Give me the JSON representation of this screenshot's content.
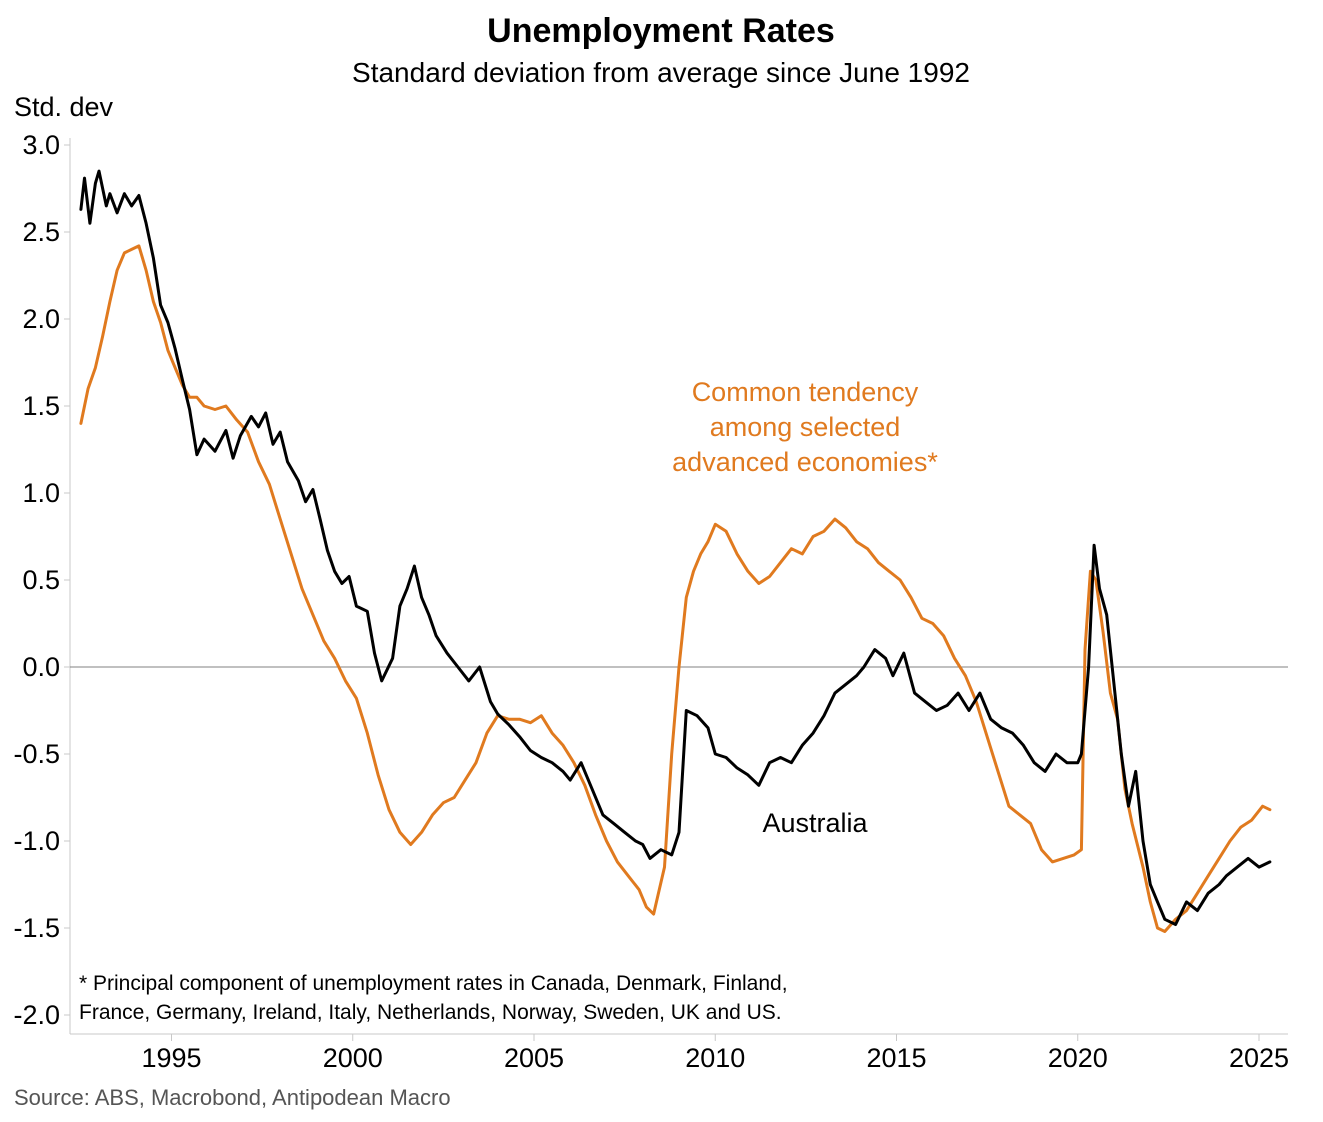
{
  "chart_data": {
    "type": "line",
    "title": "Unemployment Rates",
    "subtitle": "Standard deviation from average since June 1992",
    "ylabel": "Std. dev",
    "xlabel": "",
    "ylim": [
      -2.0,
      3.0
    ],
    "xlim": [
      1992.2,
      2025.8
    ],
    "yticks": [
      {
        "value": 3.0,
        "label": "3.0"
      },
      {
        "value": 2.5,
        "label": "2.5"
      },
      {
        "value": 2.0,
        "label": "2.0"
      },
      {
        "value": 1.5,
        "label": "1.5"
      },
      {
        "value": 1.0,
        "label": "1.0"
      },
      {
        "value": 0.5,
        "label": "0.5"
      },
      {
        "value": 0.0,
        "label": "0.0"
      },
      {
        "value": -0.5,
        "label": "-0.5"
      },
      {
        "value": -1.0,
        "label": "-1.0"
      },
      {
        "value": -1.5,
        "label": "-1.5"
      },
      {
        "value": -2.0,
        "label": "-2.0"
      }
    ],
    "xticks": [
      {
        "value": 1995,
        "label": "1995"
      },
      {
        "value": 2000,
        "label": "2000"
      },
      {
        "value": 2005,
        "label": "2005"
      },
      {
        "value": 2010,
        "label": "2010"
      },
      {
        "value": 2015,
        "label": "2015"
      },
      {
        "value": 2020,
        "label": "2020"
      },
      {
        "value": 2025,
        "label": "2025"
      }
    ],
    "zero_line": true,
    "grid": false,
    "series": [
      {
        "name": "Australia",
        "color": "#000000",
        "x": [
          1992.5,
          1992.6,
          1992.75,
          1992.9,
          1993.0,
          1993.2,
          1993.3,
          1993.5,
          1993.7,
          1993.9,
          1994.1,
          1994.3,
          1994.5,
          1994.7,
          1994.9,
          1995.1,
          1995.3,
          1995.5,
          1995.7,
          1995.9,
          1996.2,
          1996.5,
          1996.7,
          1996.9,
          1997.2,
          1997.4,
          1997.6,
          1997.8,
          1998.0,
          1998.2,
          1998.5,
          1998.7,
          1998.9,
          1999.1,
          1999.3,
          1999.5,
          1999.7,
          1999.9,
          2000.1,
          2000.4,
          2000.6,
          2000.8,
          2001.1,
          2001.3,
          2001.5,
          2001.7,
          2001.9,
          2002.1,
          2002.3,
          2002.6,
          2002.9,
          2003.2,
          2003.5,
          2003.8,
          2004.0,
          2004.3,
          2004.6,
          2004.9,
          2005.2,
          2005.5,
          2005.8,
          2006.0,
          2006.3,
          2006.6,
          2006.9,
          2007.2,
          2007.5,
          2007.8,
          2008.0,
          2008.2,
          2008.5,
          2008.8,
          2009.0,
          2009.2,
          2009.5,
          2009.8,
          2010.0,
          2010.3,
          2010.6,
          2010.9,
          2011.2,
          2011.5,
          2011.8,
          2012.1,
          2012.4,
          2012.7,
          2013.0,
          2013.3,
          2013.6,
          2013.9,
          2014.1,
          2014.4,
          2014.7,
          2014.9,
          2015.2,
          2015.5,
          2015.8,
          2016.1,
          2016.4,
          2016.7,
          2017.0,
          2017.3,
          2017.6,
          2017.9,
          2018.2,
          2018.5,
          2018.8,
          2019.1,
          2019.4,
          2019.7,
          2020.0,
          2020.1,
          2020.3,
          2020.45,
          2020.6,
          2020.8,
          2021.0,
          2021.2,
          2021.4,
          2021.6,
          2021.8,
          2022.0,
          2022.2,
          2022.4,
          2022.7,
          2023.0,
          2023.3,
          2023.6,
          2023.9,
          2024.1,
          2024.4,
          2024.7,
          2025.0,
          2025.3
        ],
        "values": [
          2.63,
          2.81,
          2.55,
          2.78,
          2.85,
          2.65,
          2.72,
          2.61,
          2.72,
          2.65,
          2.71,
          2.55,
          2.35,
          2.08,
          1.98,
          1.83,
          1.65,
          1.48,
          1.22,
          1.31,
          1.24,
          1.36,
          1.2,
          1.33,
          1.44,
          1.38,
          1.46,
          1.28,
          1.35,
          1.18,
          1.07,
          0.95,
          1.02,
          0.85,
          0.67,
          0.55,
          0.48,
          0.52,
          0.35,
          0.32,
          0.08,
          -0.08,
          0.05,
          0.35,
          0.45,
          0.58,
          0.4,
          0.3,
          0.18,
          0.08,
          0.0,
          -0.08,
          0.0,
          -0.2,
          -0.27,
          -0.33,
          -0.4,
          -0.48,
          -0.52,
          -0.55,
          -0.6,
          -0.65,
          -0.55,
          -0.7,
          -0.85,
          -0.9,
          -0.95,
          -1.0,
          -1.02,
          -1.1,
          -1.05,
          -1.08,
          -0.95,
          -0.25,
          -0.28,
          -0.35,
          -0.5,
          -0.52,
          -0.58,
          -0.62,
          -0.68,
          -0.55,
          -0.52,
          -0.55,
          -0.45,
          -0.38,
          -0.28,
          -0.15,
          -0.1,
          -0.05,
          0.0,
          0.1,
          0.05,
          -0.05,
          0.08,
          -0.15,
          -0.2,
          -0.25,
          -0.22,
          -0.15,
          -0.25,
          -0.15,
          -0.3,
          -0.35,
          -0.38,
          -0.45,
          -0.55,
          -0.6,
          -0.5,
          -0.55,
          -0.55,
          -0.5,
          0.0,
          0.7,
          0.45,
          0.3,
          -0.1,
          -0.5,
          -0.8,
          -0.6,
          -1.0,
          -1.25,
          -1.35,
          -1.45,
          -1.48,
          -1.35,
          -1.4,
          -1.3,
          -1.25,
          -1.2,
          -1.15,
          -1.1,
          -1.15,
          -1.12
        ]
      },
      {
        "name": "Common tendency among selected advanced economies*",
        "color": "#E07A1F",
        "x": [
          1992.5,
          1992.7,
          1992.9,
          1993.1,
          1993.3,
          1993.5,
          1993.7,
          1993.9,
          1994.1,
          1994.3,
          1994.5,
          1994.7,
          1994.9,
          1995.1,
          1995.3,
          1995.5,
          1995.7,
          1995.9,
          1996.2,
          1996.5,
          1996.8,
          1997.1,
          1997.4,
          1997.7,
          1998.0,
          1998.3,
          1998.6,
          1998.9,
          1999.2,
          1999.5,
          1999.8,
          2000.1,
          2000.4,
          2000.7,
          2001.0,
          2001.3,
          2001.6,
          2001.9,
          2002.2,
          2002.5,
          2002.8,
          2003.1,
          2003.4,
          2003.7,
          2004.0,
          2004.3,
          2004.6,
          2004.9,
          2005.2,
          2005.5,
          2005.8,
          2006.1,
          2006.4,
          2006.7,
          2007.0,
          2007.3,
          2007.6,
          2007.9,
          2008.1,
          2008.3,
          2008.6,
          2008.8,
          2009.0,
          2009.2,
          2009.4,
          2009.6,
          2009.8,
          2010.0,
          2010.3,
          2010.6,
          2010.9,
          2011.2,
          2011.5,
          2011.8,
          2012.1,
          2012.4,
          2012.7,
          2013.0,
          2013.3,
          2013.6,
          2013.9,
          2014.2,
          2014.5,
          2014.8,
          2015.1,
          2015.4,
          2015.7,
          2016.0,
          2016.3,
          2016.6,
          2016.9,
          2017.2,
          2017.5,
          2017.8,
          2018.1,
          2018.4,
          2018.7,
          2019.0,
          2019.3,
          2019.6,
          2019.9,
          2020.1,
          2020.2,
          2020.35,
          2020.5,
          2020.7,
          2020.9,
          2021.1,
          2021.3,
          2021.5,
          2021.8,
          2022.0,
          2022.2,
          2022.4,
          2022.7,
          2023.0,
          2023.3,
          2023.6,
          2023.9,
          2024.2,
          2024.5,
          2024.8,
          2025.1,
          2025.3
        ],
        "values": [
          1.4,
          1.6,
          1.72,
          1.9,
          2.1,
          2.28,
          2.38,
          2.4,
          2.42,
          2.28,
          2.1,
          1.98,
          1.82,
          1.72,
          1.62,
          1.55,
          1.55,
          1.5,
          1.48,
          1.5,
          1.42,
          1.35,
          1.18,
          1.05,
          0.85,
          0.65,
          0.45,
          0.3,
          0.15,
          0.05,
          -0.08,
          -0.18,
          -0.38,
          -0.62,
          -0.82,
          -0.95,
          -1.02,
          -0.95,
          -0.85,
          -0.78,
          -0.75,
          -0.65,
          -0.55,
          -0.38,
          -0.28,
          -0.3,
          -0.3,
          -0.32,
          -0.28,
          -0.38,
          -0.45,
          -0.55,
          -0.68,
          -0.85,
          -1.0,
          -1.12,
          -1.2,
          -1.28,
          -1.38,
          -1.42,
          -1.15,
          -0.5,
          0.0,
          0.4,
          0.55,
          0.65,
          0.72,
          0.82,
          0.78,
          0.65,
          0.55,
          0.48,
          0.52,
          0.6,
          0.68,
          0.65,
          0.75,
          0.78,
          0.85,
          0.8,
          0.72,
          0.68,
          0.6,
          0.55,
          0.5,
          0.4,
          0.28,
          0.25,
          0.18,
          0.05,
          -0.05,
          -0.2,
          -0.4,
          -0.6,
          -0.8,
          -0.85,
          -0.9,
          -1.05,
          -1.12,
          -1.1,
          -1.08,
          -1.05,
          0.1,
          0.55,
          0.5,
          0.2,
          -0.15,
          -0.3,
          -0.7,
          -0.9,
          -1.15,
          -1.35,
          -1.5,
          -1.52,
          -1.45,
          -1.4,
          -1.3,
          -1.2,
          -1.1,
          -1.0,
          -0.92,
          -0.88,
          -0.8,
          -0.82
        ]
      }
    ],
    "annotations": {
      "orange_lines": [
        "Common tendency",
        "among selected",
        "advanced economies*"
      ],
      "black_label": "Australia"
    },
    "footnote_lines": [
      "* Principal component of unemployment rates in Canada, Denmark, Finland,",
      "France, Germany, Ireland, Italy, Netherlands, Norway, Sweden, UK and US."
    ],
    "source": "Source: ABS, Macrobond, Antipodean Macro"
  }
}
